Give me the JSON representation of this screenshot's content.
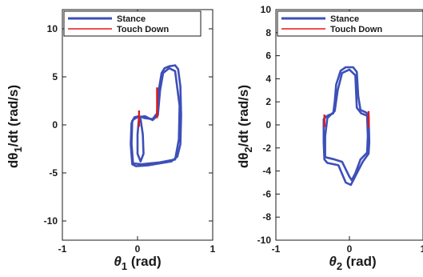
{
  "chart_data": [
    {
      "type": "line",
      "xlim": [
        -1,
        1
      ],
      "ylim": [
        -12,
        12
      ],
      "xticks": [
        -1,
        0,
        1
      ],
      "yticks": [
        -10,
        -5,
        0,
        5,
        10
      ],
      "xlabel": {
        "symbol": "θ",
        "sub": "1",
        "unit": " (rad)"
      },
      "ylabel": {
        "pre": "dθ",
        "sub": "1",
        "post": "/dt (rad/s)"
      },
      "legend": {
        "position": "top",
        "entries": [
          "Stance",
          "Touch Down"
        ]
      },
      "series": [
        {
          "name": "Stance",
          "color": "#3d4fb8",
          "loops": [
            [
              [
                0.26,
                1.2
              ],
              [
                0.28,
                3.5
              ],
              [
                0.32,
                5.4
              ],
              [
                0.36,
                5.9
              ],
              [
                0.42,
                6.1
              ],
              [
                0.5,
                6.2
              ],
              [
                0.54,
                5.8
              ],
              [
                0.57,
                4.0
              ],
              [
                0.58,
                1.0
              ],
              [
                0.57,
                -2.0
              ],
              [
                0.53,
                -3.3
              ],
              [
                0.45,
                -3.8
              ],
              [
                0.3,
                -4.0
              ],
              [
                0.15,
                -4.2
              ],
              [
                -0.02,
                -4.3
              ],
              [
                -0.07,
                -4.1
              ],
              [
                -0.09,
                -2.0
              ],
              [
                -0.08,
                0.2
              ],
              [
                -0.04,
                0.8
              ],
              [
                0.02,
                0.9
              ],
              [
                0.1,
                0.7
              ],
              [
                0.2,
                0.6
              ],
              [
                0.26,
                1.2
              ]
            ],
            [
              [
                -0.07,
                0.5
              ],
              [
                -0.08,
                -2.0
              ],
              [
                -0.06,
                -4.0
              ],
              [
                0.05,
                -4.1
              ],
              [
                0.3,
                -3.9
              ],
              [
                0.5,
                -3.6
              ],
              [
                0.55,
                -1.5
              ],
              [
                0.56,
                2.0
              ],
              [
                0.5,
                5.6
              ],
              [
                0.42,
                5.9
              ],
              [
                0.34,
                5.4
              ],
              [
                0.3,
                3.6
              ],
              [
                0.27,
                1.0
              ],
              [
                0.2,
                0.5
              ],
              [
                0.1,
                0.9
              ],
              [
                0.0,
                0.8
              ],
              [
                -0.07,
                0.5
              ]
            ],
            [
              [
                0.02,
                0.8
              ],
              [
                0.0,
                -1.0
              ],
              [
                0.0,
                -3.0
              ],
              [
                0.04,
                -3.8
              ],
              [
                0.08,
                -3.0
              ],
              [
                0.07,
                -1.0
              ],
              [
                0.04,
                0.6
              ],
              [
                0.02,
                0.8
              ]
            ]
          ]
        },
        {
          "name": "Touch Down",
          "color": "#e0181b",
          "segments": [
            [
              [
                0.02,
                -0.2
              ],
              [
                0.02,
                1.5
              ]
            ],
            [
              [
                0.26,
                0.7
              ],
              [
                0.26,
                3.9
              ]
            ]
          ]
        }
      ]
    },
    {
      "type": "line",
      "xlim": [
        -1,
        1
      ],
      "ylim": [
        -10,
        10
      ],
      "xticks": [
        -1,
        0,
        1
      ],
      "yticks": [
        -10,
        -8,
        -6,
        -4,
        -2,
        0,
        2,
        4,
        6,
        8,
        10
      ],
      "xlabel": {
        "symbol": "θ",
        "sub": "2",
        "unit": " (rad)"
      },
      "ylabel": {
        "pre": "dθ",
        "sub": "2",
        "post": "/dt (rad/s)"
      },
      "legend": {
        "position": "top",
        "entries": [
          "Stance",
          "Touch Down"
        ]
      },
      "series": [
        {
          "name": "Stance",
          "color": "#3d4fb8",
          "loops": [
            [
              [
                -0.3,
                0.8
              ],
              [
                -0.22,
                1.0
              ],
              [
                -0.2,
                2.0
              ],
              [
                -0.18,
                3.5
              ],
              [
                -0.12,
                4.7
              ],
              [
                -0.05,
                5.0
              ],
              [
                0.05,
                5.0
              ],
              [
                0.1,
                4.6
              ],
              [
                0.12,
                2.5
              ],
              [
                0.15,
                1.3
              ],
              [
                0.22,
                1.1
              ],
              [
                0.26,
                0.9
              ],
              [
                0.27,
                -1.5
              ],
              [
                0.26,
                -2.5
              ],
              [
                0.18,
                -3.2
              ],
              [
                0.1,
                -4.2
              ],
              [
                0.02,
                -5.2
              ],
              [
                -0.05,
                -5.0
              ],
              [
                -0.15,
                -3.5
              ],
              [
                -0.3,
                -3.3
              ],
              [
                -0.34,
                -3.0
              ],
              [
                -0.35,
                -1.5
              ],
              [
                -0.35,
                0.5
              ],
              [
                -0.3,
                0.8
              ]
            ],
            [
              [
                -0.3,
                0.6
              ],
              [
                -0.33,
                -1.0
              ],
              [
                -0.33,
                -2.8
              ],
              [
                -0.2,
                -3.0
              ],
              [
                -0.1,
                -3.2
              ],
              [
                0.0,
                -4.5
              ],
              [
                0.03,
                -4.8
              ],
              [
                0.08,
                -4.2
              ],
              [
                0.15,
                -3.0
              ],
              [
                0.24,
                -2.4
              ],
              [
                0.25,
                -1.0
              ],
              [
                0.24,
                0.8
              ],
              [
                0.16,
                1.0
              ],
              [
                0.1,
                1.5
              ],
              [
                0.08,
                4.3
              ],
              [
                0.0,
                4.8
              ],
              [
                -0.1,
                4.5
              ],
              [
                -0.16,
                3.0
              ],
              [
                -0.2,
                1.2
              ],
              [
                -0.3,
                0.6
              ]
            ]
          ]
        },
        {
          "name": "Touch Down",
          "color": "#e0181b",
          "segments": [
            [
              [
                -0.34,
                -0.2
              ],
              [
                -0.34,
                0.9
              ]
            ],
            [
              [
                0.26,
                -0.2
              ],
              [
                0.26,
                1.2
              ]
            ]
          ]
        }
      ]
    }
  ]
}
